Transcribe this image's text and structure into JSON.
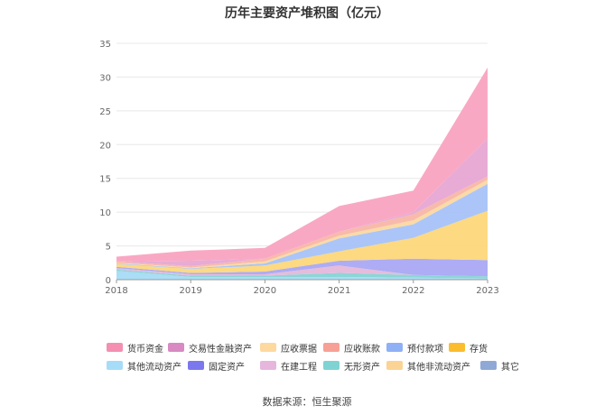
{
  "title": "历年主要资产堆积图（亿元）",
  "source": "数据来源：恒生聚源",
  "chart_data": {
    "type": "area",
    "stacked": true,
    "title": "历年主要资产堆积图（亿元）",
    "xlabel": "",
    "ylabel": "",
    "x": [
      "2018",
      "2019",
      "2020",
      "2021",
      "2022",
      "2023"
    ],
    "ylim": [
      0,
      35
    ],
    "yticks": [
      0,
      5,
      10,
      15,
      20,
      25,
      30,
      35
    ],
    "grid": true,
    "legend_position": "bottom",
    "series": [
      {
        "name": "其他流动资产",
        "color": "#a6dbf5",
        "values": [
          1.3,
          0.4,
          0.4,
          0.4,
          0.3,
          0.2
        ]
      },
      {
        "name": "无形资产",
        "color": "#86d4d4",
        "values": [
          0.2,
          0.2,
          0.2,
          0.6,
          0.4,
          0.3
        ]
      },
      {
        "name": "在建工程",
        "color": "#e4b8da",
        "values": [
          0.2,
          0.2,
          0.2,
          1.1,
          0.0,
          0.0
        ]
      },
      {
        "name": "固定资产",
        "color": "#a9a8f3",
        "values": [
          0.2,
          0.2,
          0.4,
          0.7,
          2.4,
          2.4
        ]
      },
      {
        "name": "存货",
        "color": "#fdd77a",
        "values": [
          0.4,
          0.6,
          0.9,
          1.4,
          3.1,
          7.3
        ]
      },
      {
        "name": "预付款项",
        "color": "#a6c2f8",
        "values": [
          0.1,
          0.1,
          0.3,
          1.9,
          2.0,
          4.0
        ]
      },
      {
        "name": "其他非流动资产",
        "color": "#fbd8a0",
        "values": [
          0.1,
          0.1,
          0.3,
          0.4,
          0.6,
          0.6
        ]
      },
      {
        "name": "应收账款",
        "color": "#f8b6a6",
        "values": [
          0.2,
          0.2,
          0.4,
          0.6,
          0.9,
          0.5
        ]
      },
      {
        "name": "其它",
        "color": "#a9c0e3",
        "values": [
          0.0,
          0.0,
          0.0,
          0.0,
          0.0,
          0.0
        ]
      },
      {
        "name": "应收票据",
        "color": "#fde0b0",
        "values": [
          0.0,
          0.0,
          0.0,
          0.0,
          0.0,
          0.0
        ]
      },
      {
        "name": "交易性金融资产",
        "color": "#e6a6d3",
        "values": [
          0.0,
          0.8,
          0.0,
          0.0,
          0.3,
          5.6
        ]
      },
      {
        "name": "货币资金",
        "color": "#f9a3c1",
        "values": [
          0.7,
          1.5,
          1.6,
          3.8,
          3.2,
          10.5
        ]
      }
    ]
  },
  "legend": {
    "row1": [
      {
        "label": "货币资金",
        "color": "#f48fb1"
      },
      {
        "label": "交易性金融资产",
        "color": "#d98ac2"
      },
      {
        "label": "应收票据",
        "color": "#fdd9a0"
      },
      {
        "label": "应收账款",
        "color": "#f7a096"
      },
      {
        "label": "预付款项",
        "color": "#8fb0f5"
      },
      {
        "label": "存货",
        "color": "#fbbd2e"
      }
    ],
    "row2": [
      {
        "label": "其他流动资产",
        "color": "#a6dcf7"
      },
      {
        "label": "固定资产",
        "color": "#7b78ee"
      },
      {
        "label": "在建工程",
        "color": "#e6b6dc"
      },
      {
        "label": "无形资产",
        "color": "#7fd3d3"
      },
      {
        "label": "其他非流动资产",
        "color": "#fbd394"
      },
      {
        "label": "其它",
        "color": "#8fa9d6"
      }
    ]
  }
}
